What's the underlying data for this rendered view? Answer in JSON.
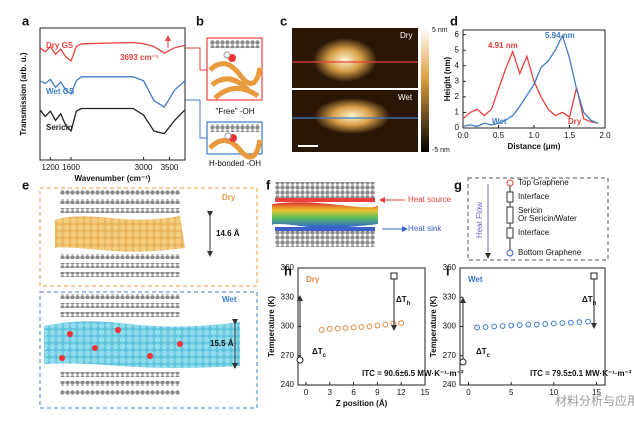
{
  "chart_data": [
    {
      "type": "line",
      "panel": "a",
      "xlabel": "Wavenumber (cm⁻¹)",
      "ylabel": "Transmission (arb. u.)",
      "x": [
        1000,
        1100,
        1200,
        1300,
        1400,
        1500,
        1600,
        1700,
        1800,
        2800,
        3000,
        3200,
        3400,
        3600,
        3800
      ],
      "xlim": [
        1000,
        3800
      ],
      "xticks": [
        1200,
        1600,
        3000,
        3500
      ],
      "ylim": [
        0,
        10
      ],
      "series": [
        {
          "name": "Dry GS",
          "color": "#e8413c",
          "values": [
            8.5,
            8.2,
            8.6,
            8.0,
            8.4,
            7.8,
            7.5,
            8.6,
            8.8,
            8.9,
            8.8,
            8.6,
            8.1,
            8.5,
            8.7
          ]
        },
        {
          "name": "Wet GS",
          "color": "#3d7cc9",
          "values": [
            6.0,
            5.8,
            6.1,
            5.5,
            5.9,
            5.3,
            5.0,
            6.0,
            6.3,
            6.3,
            6.0,
            4.5,
            4.0,
            5.3,
            6.0
          ]
        },
        {
          "name": "Sericin",
          "color": "#222222",
          "values": [
            3.8,
            3.3,
            3.7,
            3.0,
            3.5,
            2.6,
            2.2,
            3.7,
            3.9,
            3.9,
            3.4,
            2.2,
            2.0,
            3.0,
            3.8
          ]
        }
      ],
      "annotations": [
        {
          "text": "3693 cm⁻¹",
          "color": "#e8413c"
        }
      ]
    },
    {
      "type": "line",
      "panel": "d",
      "xlabel": "Distance (μm)",
      "ylabel": "Height (nm)",
      "x": [
        0,
        0.1,
        0.2,
        0.3,
        0.4,
        0.5,
        0.6,
        0.7,
        0.8,
        0.9,
        1.0,
        1.1,
        1.2,
        1.3,
        1.4,
        1.5,
        1.6,
        1.7,
        1.8,
        1.9
      ],
      "xlim": [
        0,
        2
      ],
      "xticks": [
        {
          "value": 0,
          "label": "0.0"
        },
        0.5,
        {
          "value": 1,
          "label": "1.0"
        },
        1.5,
        {
          "value": 2,
          "label": "2.0"
        }
      ],
      "ylim": [
        0,
        6.3
      ],
      "yticks": [
        0,
        1,
        2,
        3,
        4,
        5,
        6
      ],
      "series": [
        {
          "name": "Dry",
          "color": "#e8413c",
          "values": [
            0.6,
            1.0,
            1.2,
            0.8,
            1.2,
            2.5,
            3.8,
            4.91,
            3.5,
            4.6,
            3.0,
            2.0,
            1.2,
            0.8,
            1.0,
            0.7,
            2.6,
            0.6,
            0.4,
            0.3
          ]
        },
        {
          "name": "Wet",
          "color": "#3d7cc9",
          "values": [
            0.1,
            0.2,
            0.1,
            0.3,
            0.2,
            0.3,
            0.5,
            0.8,
            1.4,
            2.1,
            2.8,
            3.9,
            4.3,
            5.0,
            5.94,
            4.5,
            2.5,
            1.0,
            0.5,
            0.3
          ]
        }
      ],
      "annotations": [
        {
          "text": "4.91 nm",
          "color": "#e8413c"
        },
        {
          "text": "5.94 nm",
          "color": "#3d7cc9"
        }
      ]
    },
    {
      "type": "scatter",
      "panel": "h",
      "xlabel": "Z position (Å)",
      "ylabel": "Temperature (K)",
      "x": [
        2,
        3,
        4,
        5,
        6,
        7,
        8,
        9,
        10,
        11,
        12
      ],
      "xlim": [
        -1,
        15
      ],
      "xticks": [
        0,
        3,
        6,
        9,
        12,
        15
      ],
      "ylim": [
        240,
        360
      ],
      "yticks": [
        240,
        270,
        300,
        330,
        360
      ],
      "series": [
        {
          "name": "Dry",
          "color": "#e8893c",
          "values": [
            296.5,
            297.5,
            298,
            298.5,
            299,
            299.5,
            300,
            301,
            302,
            303,
            303.5
          ]
        }
      ],
      "annotations": [
        {
          "text": "ITC = 90.6±6.5 MW·K⁻¹·m⁻²",
          "color": "#111111"
        }
      ],
      "deltas": [
        {
          "symbol": "ΔT",
          "sub": "h"
        },
        {
          "symbol": "ΔT",
          "sub": "c"
        }
      ]
    },
    {
      "type": "scatter",
      "panel": "i",
      "ylabel": "Temperature (K)",
      "x": [
        1,
        2,
        3,
        4,
        5,
        6,
        7,
        8,
        9,
        10,
        11,
        12,
        13,
        14
      ],
      "xlim": [
        -1,
        16
      ],
      "xticks": [
        0,
        5,
        10,
        15
      ],
      "ylim": [
        240,
        360
      ],
      "yticks": [
        240,
        270,
        300,
        330,
        360
      ],
      "series": [
        {
          "name": "Wet",
          "color": "#3d7cc9",
          "values": [
            299,
            299.5,
            300,
            300.5,
            301,
            301.5,
            302,
            302,
            302.5,
            303,
            303.5,
            304,
            304.5,
            305
          ]
        }
      ],
      "annotations": [
        {
          "text": "ITC = 79.5±0.1 MW·K⁻¹·m⁻²",
          "color": "#111111"
        }
      ],
      "deltas": [
        {
          "symbol": "ΔT",
          "sub": "h"
        },
        {
          "symbol": "ΔT",
          "sub": "c"
        }
      ]
    }
  ],
  "figure": {
    "b": {
      "letter": "b",
      "free": "\"Free\" -OH",
      "bonded": "H-bonded -OH"
    },
    "c": {
      "letter": "c",
      "dry": "Dry",
      "wet": "Wet",
      "cmax": "5 nm",
      "cmin": "-5 nm"
    },
    "e": {
      "letter": "e",
      "dry": "Dry",
      "dry_gap": "14.6 Å",
      "wet": "Wet",
      "wet_gap": "15.5 Å"
    },
    "f": {
      "letter": "f",
      "source": "Heat source",
      "sink": "Heat sink"
    },
    "g": {
      "letter": "g",
      "flow": "Heat Flow",
      "items": [
        "Top Graphene",
        "Interface",
        "Sericin",
        "Or Sericin/Water",
        "Interface",
        "Bottom Graphene"
      ]
    },
    "watermark": "材料分析与应用"
  }
}
